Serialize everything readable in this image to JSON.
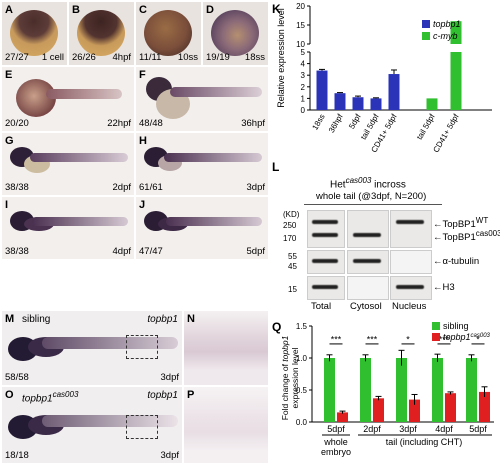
{
  "panels": {
    "A": {
      "letter": "A",
      "count": "27/27",
      "stage": "1 cell"
    },
    "B": {
      "letter": "B",
      "count": "26/26",
      "stage": "4hpf"
    },
    "C": {
      "letter": "C",
      "count": "11/11",
      "stage": "10ss"
    },
    "D": {
      "letter": "D",
      "count": "19/19",
      "stage": "18ss"
    },
    "E": {
      "letter": "E",
      "count": "20/20",
      "stage": "22hpf"
    },
    "F": {
      "letter": "F",
      "count": "48/48",
      "stage": "36hpf"
    },
    "G": {
      "letter": "G",
      "count": "38/38",
      "stage": "2dpf"
    },
    "H": {
      "letter": "H",
      "count": "61/61",
      "stage": "3dpf"
    },
    "I": {
      "letter": "I",
      "count": "38/38",
      "stage": "4dpf"
    },
    "J": {
      "letter": "J",
      "count": "47/47",
      "stage": "5dpf"
    },
    "M": {
      "letter": "M",
      "label": "sibling",
      "gene": "topbp1",
      "count": "58/58",
      "stage": "3dpf"
    },
    "N": {
      "letter": "N"
    },
    "O": {
      "letter": "O",
      "label": "topbp1",
      "label_sup": "cas003",
      "gene": "topbp1",
      "count": "18/18",
      "stage": "3dpf"
    },
    "P": {
      "letter": "P"
    }
  },
  "panel_K": {
    "letter": "K",
    "legend": [
      {
        "name": "topbp1",
        "color": "#2b34b8"
      },
      {
        "name": "c-myb",
        "color": "#2fbf2f"
      }
    ],
    "ylabel": "Relative expression level"
  },
  "panel_L": {
    "letter": "L",
    "title": "Het",
    "title_sup": "cas003",
    "title_tail": " incross",
    "subtitle": "whole tail (@3dpf, N=200)",
    "kd_label": "(KD)",
    "markers": [
      "250",
      "170",
      "55",
      "45",
      "15"
    ],
    "lanes": [
      "Total",
      "Cytosol",
      "Nucleus"
    ],
    "bands": [
      {
        "name": "TopBP1",
        "sup": "WT"
      },
      {
        "name": "TopBP1",
        "sup": "cas003"
      },
      {
        "name": "α-tubulin",
        "sup": ""
      },
      {
        "name": "H3",
        "sup": ""
      }
    ]
  },
  "panel_Q": {
    "letter": "Q",
    "legend": [
      {
        "name": "sibling",
        "color": "#2fbf2f"
      },
      {
        "name": "topbp1",
        "sup": "cas003",
        "color": "#e02020"
      }
    ],
    "ylabel_line1": "Fold change of",
    "ylabel_gene": "topbp1",
    "ylabel_line2": "expression level",
    "group_labels": [
      {
        "line1": "whole",
        "line2": "embryo"
      },
      {
        "line1": "tail (including CHT)",
        "line2": ""
      }
    ]
  },
  "chart_data": [
    {
      "type": "bar",
      "panel": "K",
      "categories": [
        "18ss",
        "36hpf",
        "5dpf",
        "tail 5dpf",
        "CD41+ 5dpf",
        "tail 5dpf",
        "CD41+ 5dpf"
      ],
      "series": [
        {
          "name": "topbp1",
          "values": [
            3.4,
            1.45,
            1.1,
            1.0,
            3.1,
            null,
            null
          ],
          "errors": [
            0.1,
            0.05,
            0.1,
            0.05,
            0.35,
            null,
            null
          ]
        },
        {
          "name": "c-myb",
          "values": [
            null,
            null,
            null,
            null,
            null,
            1.0,
            16
          ]
        }
      ],
      "ylabel": "Relative expression level",
      "yticks": [
        0,
        1,
        2,
        3,
        4,
        5,
        10,
        15,
        20
      ],
      "axis_break": [
        5,
        10
      ]
    },
    {
      "type": "bar",
      "panel": "Q",
      "categories": [
        "5dpf",
        "2dpf",
        "3dpf",
        "4dpf",
        "5dpf"
      ],
      "series": [
        {
          "name": "sibling",
          "values": [
            1.0,
            1.0,
            1.0,
            1.0,
            1.0
          ],
          "errors": [
            0.05,
            0.05,
            0.12,
            0.06,
            0.05
          ]
        },
        {
          "name": "topbp1 cas003",
          "values": [
            0.15,
            0.37,
            0.35,
            0.45,
            0.47
          ],
          "errors": [
            0.02,
            0.03,
            0.08,
            0.02,
            0.08
          ]
        }
      ],
      "significance": [
        "***",
        "***",
        "*",
        "***",
        "*"
      ],
      "ylabel": "Fold change of topbp1 expression level",
      "ylim": [
        0,
        1.5
      ],
      "yticks": [
        0.0,
        0.5,
        1.0,
        1.5
      ]
    }
  ]
}
